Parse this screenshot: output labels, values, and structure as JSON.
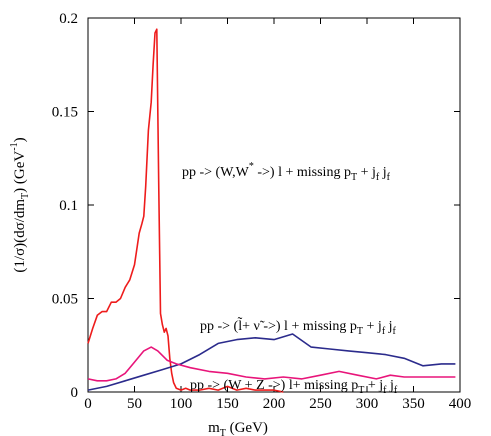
{
  "chart_data": {
    "type": "line",
    "title": "",
    "xlabel": "m_T (GeV)",
    "ylabel": "(1/σ)(dσ/dm_T) (GeV^-1)",
    "xlim": [
      0,
      400
    ],
    "ylim": [
      0,
      0.2
    ],
    "grid": false,
    "x_ticks": [
      "0",
      "50",
      "100",
      "150",
      "200",
      "250",
      "300",
      "350",
      "400"
    ],
    "y_ticks": [
      "0",
      "0.05",
      "0.1",
      "0.15",
      "0.2"
    ],
    "series": [
      {
        "name": "pp -> (W,W* ->) l + missing pT + jf jf",
        "color": "#ee1c1c",
        "x": [
          0,
          5,
          10,
          15,
          20,
          25,
          30,
          35,
          40,
          45,
          50,
          55,
          58,
          60,
          62,
          65,
          68,
          70,
          72,
          74,
          76,
          78,
          80,
          82,
          84,
          86,
          88,
          90,
          92,
          95,
          100,
          105,
          110,
          120,
          130,
          140,
          150,
          160,
          170,
          180,
          190,
          200,
          210
        ],
        "y": [
          0.026,
          0.034,
          0.041,
          0.043,
          0.043,
          0.048,
          0.048,
          0.05,
          0.056,
          0.06,
          0.068,
          0.085,
          0.09,
          0.094,
          0.11,
          0.14,
          0.155,
          0.175,
          0.192,
          0.194,
          0.112,
          0.042,
          0.036,
          0.032,
          0.034,
          0.03,
          0.018,
          0.01,
          0.005,
          0.002,
          0.001,
          0.002,
          0.001,
          0.001,
          0.002,
          0.001,
          0.003,
          0.001,
          0.002,
          0.001,
          0.001,
          0.001,
          0.0
        ]
      },
      {
        "name": "pp -> (l̃ + ν̃ ->) l + missing pT + jf jf",
        "color": "#2b2b8c",
        "x": [
          0,
          20,
          40,
          60,
          80,
          100,
          120,
          140,
          160,
          180,
          200,
          220,
          240,
          260,
          280,
          300,
          320,
          340,
          360,
          380,
          395
        ],
        "y": [
          0.001,
          0.003,
          0.006,
          0.009,
          0.012,
          0.015,
          0.02,
          0.026,
          0.028,
          0.029,
          0.028,
          0.031,
          0.024,
          0.023,
          0.022,
          0.021,
          0.02,
          0.018,
          0.014,
          0.015,
          0.015
        ]
      },
      {
        "name": "pp -> (W + Z ->) l + missing pT + jf jf",
        "color": "#e8157a",
        "x": [
          0,
          10,
          20,
          30,
          40,
          50,
          60,
          68,
          75,
          85,
          95,
          110,
          130,
          150,
          170,
          190,
          210,
          230,
          250,
          270,
          290,
          310,
          325,
          340,
          360,
          380,
          395
        ],
        "y": [
          0.007,
          0.006,
          0.006,
          0.007,
          0.01,
          0.016,
          0.022,
          0.024,
          0.022,
          0.017,
          0.015,
          0.013,
          0.011,
          0.01,
          0.008,
          0.007,
          0.008,
          0.007,
          0.009,
          0.011,
          0.009,
          0.007,
          0.009,
          0.008,
          0.008,
          0.008,
          0.008
        ]
      }
    ]
  }
}
